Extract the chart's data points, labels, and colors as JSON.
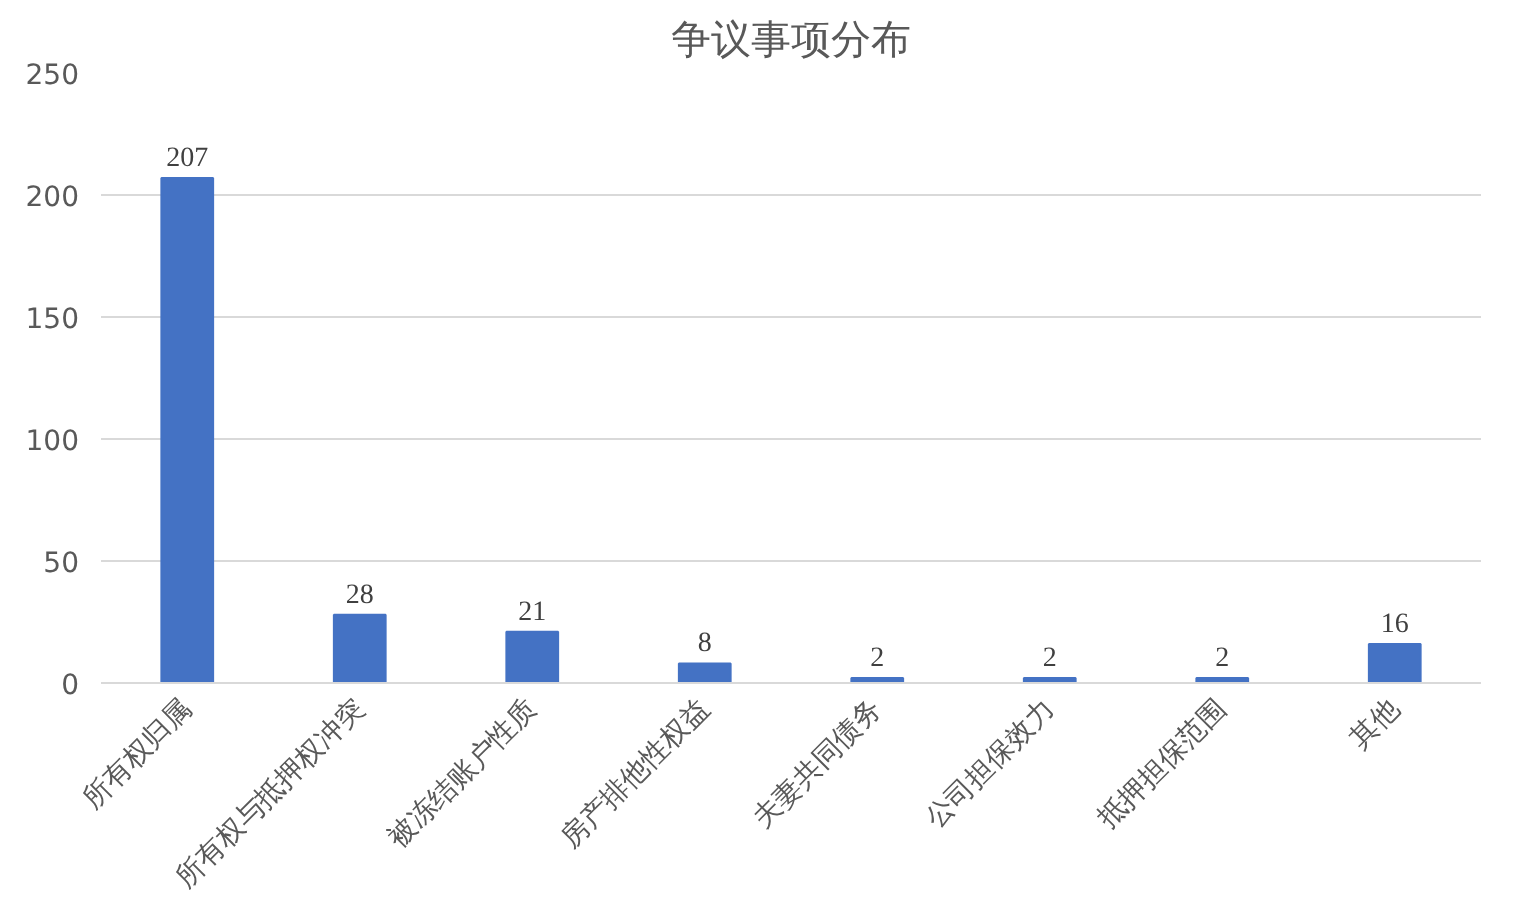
{
  "chart_data": {
    "type": "bar",
    "title": "争议事项分布",
    "categories": [
      "所有权归属",
      "所有权与抵押权冲突",
      "被冻结账户性质",
      "房产排他性权益",
      "夫妻共同债务",
      "公司担保效力",
      "抵押担保范围",
      "其他"
    ],
    "values": [
      207,
      28,
      21,
      8,
      2,
      2,
      2,
      16
    ],
    "color": "#4472c4",
    "ylim": [
      0,
      250
    ],
    "yticks": [
      0,
      50,
      100,
      150,
      200,
      250
    ],
    "grid": "y",
    "data_labels": true
  }
}
